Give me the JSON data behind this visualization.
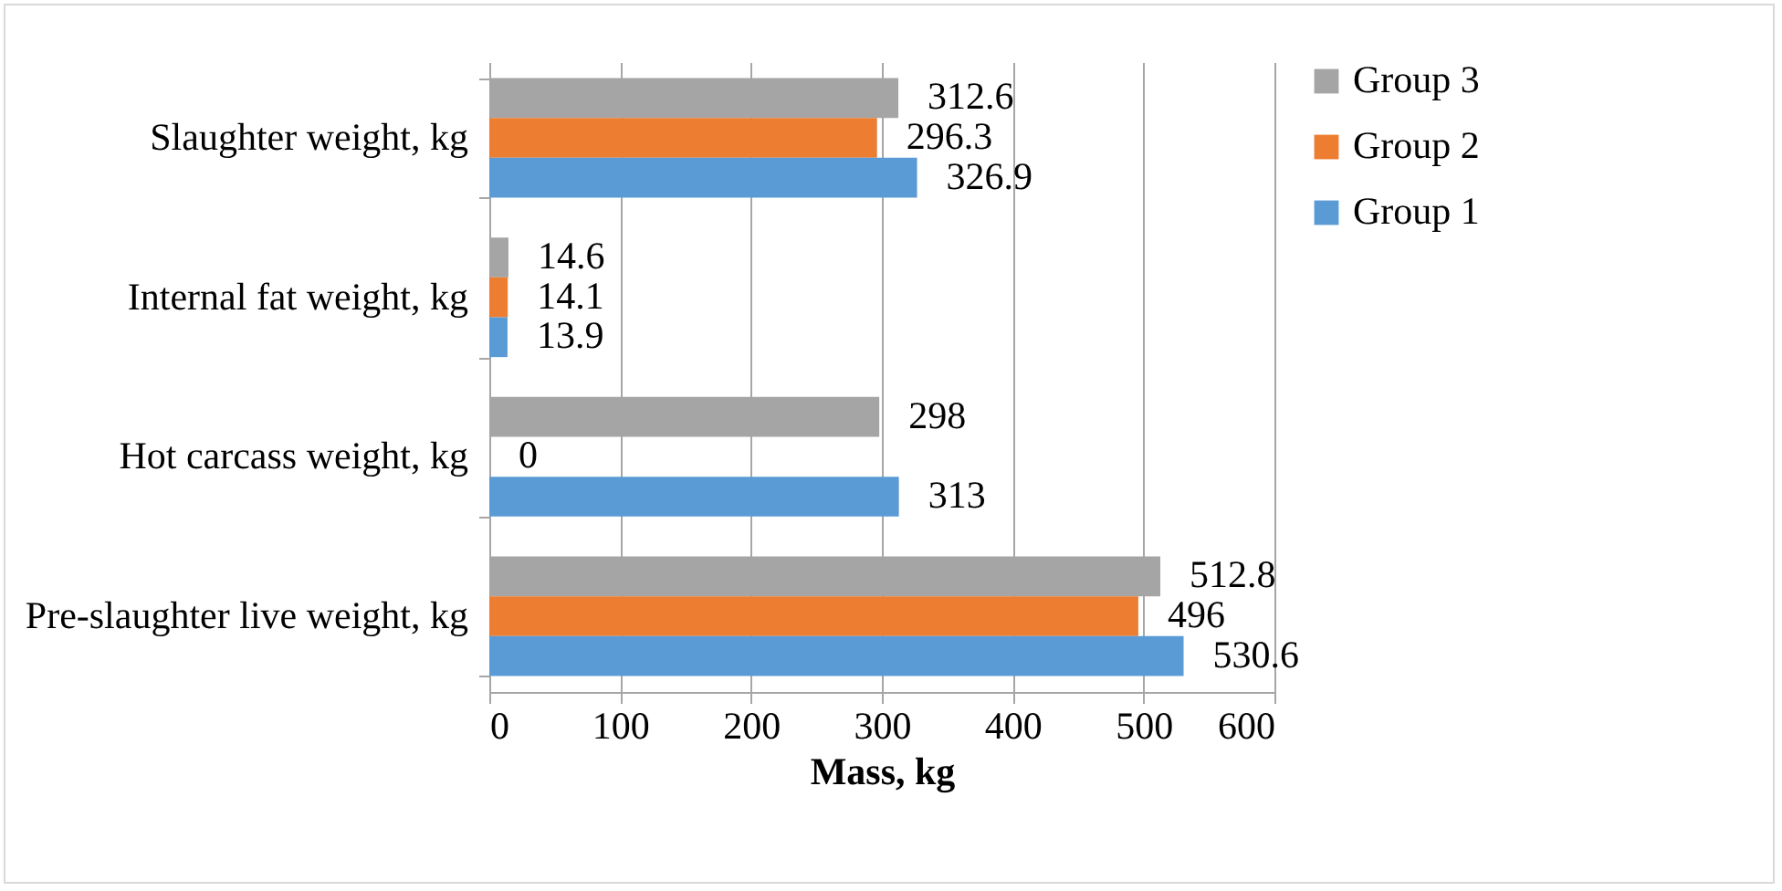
{
  "chart_data": {
    "type": "bar",
    "orientation": "horizontal",
    "xlabel": "Mass, kg",
    "categories": [
      "Slaughter weight, kg",
      "Internal fat weight, kg",
      "Hot carcass weight, kg",
      "Pre-slaughter live weight, kg"
    ],
    "series": [
      {
        "name": "Group 3",
        "color": "#a5a5a5",
        "values": [
          312.6,
          14.6,
          298,
          512.8
        ]
      },
      {
        "name": "Group 2",
        "color": "#ed7d31",
        "values": [
          296.3,
          14.1,
          0,
          496
        ]
      },
      {
        "name": "Group 1",
        "color": "#5b9bd5",
        "values": [
          326.9,
          13.9,
          313,
          530.6
        ]
      }
    ],
    "xlim": [
      0,
      600
    ],
    "xticks": [
      0,
      100,
      200,
      300,
      400,
      500,
      600
    ],
    "grid": "x",
    "legend": "right",
    "data_labels": true
  }
}
